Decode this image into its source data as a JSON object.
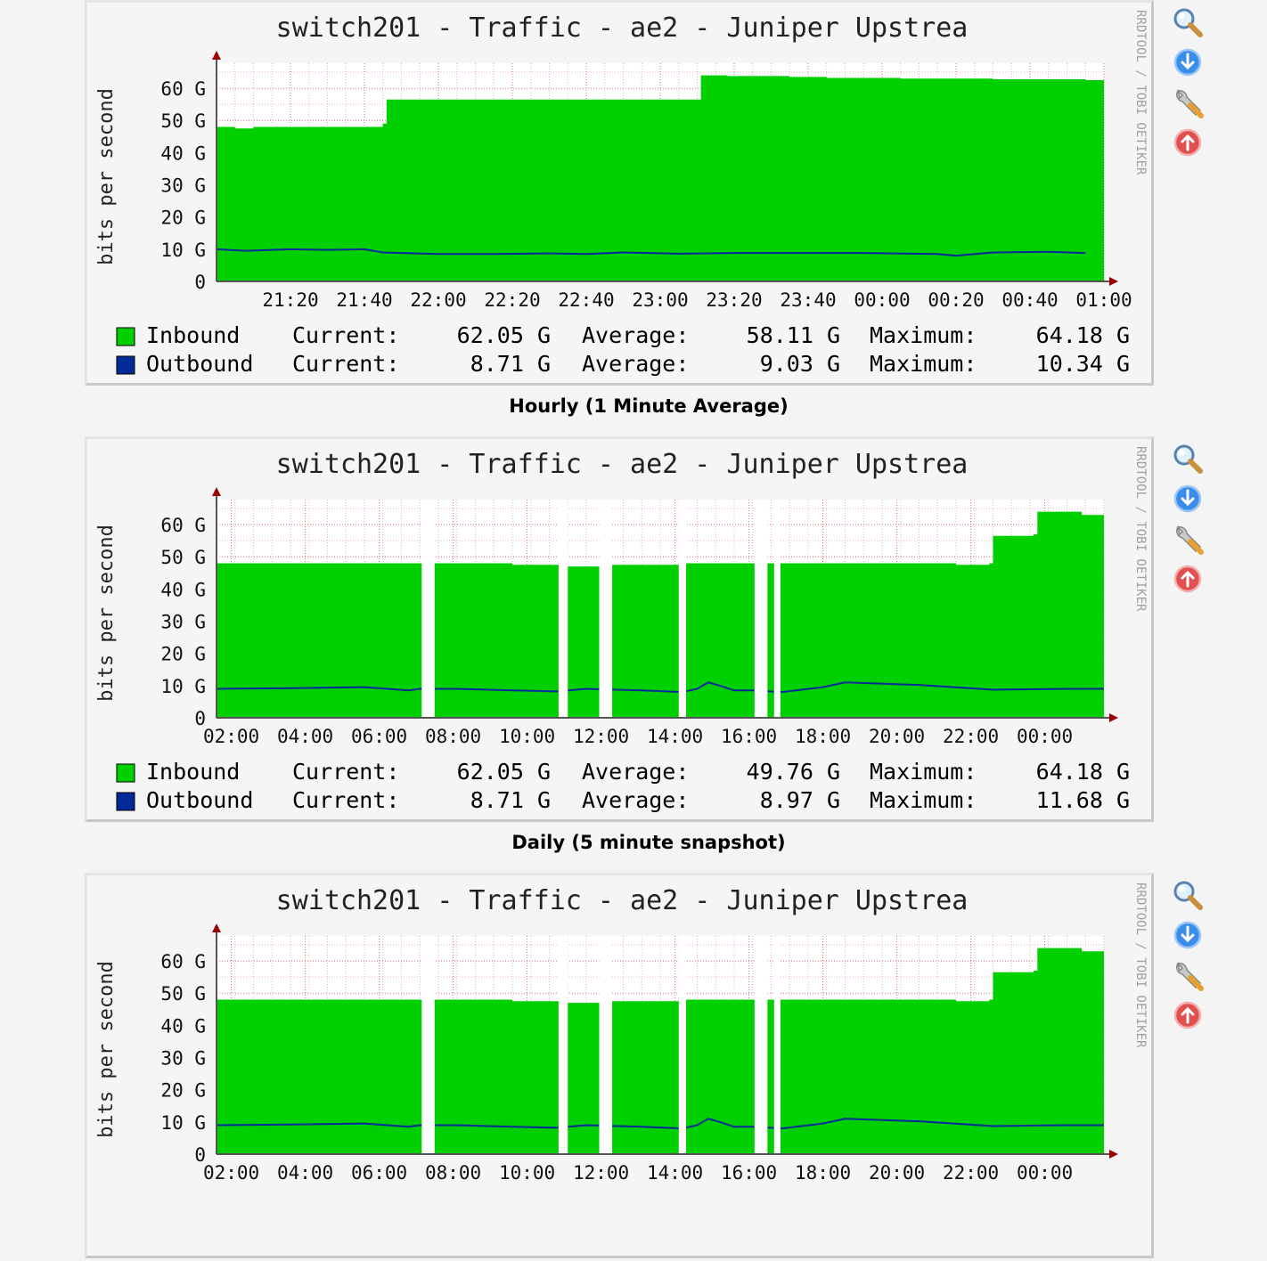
{
  "graphs": [
    {
      "title": "switch201 - Traffic - ae2 - Juniper Upstrea",
      "ylabel": "bits per second",
      "watermark": "RRDTOOL / TOBI OETIKER",
      "caption": "Hourly (1 Minute Average)",
      "icons": [
        "zoom-icon",
        "download-icon",
        "edit-icon",
        "delete-icon"
      ],
      "legend": [
        {
          "name": "Inbound",
          "color": "#00cf00",
          "current_label": "Current:",
          "current": "62.05 G",
          "average_label": "Average:",
          "average": "58.11 G",
          "maximum_label": "Maximum:",
          "maximum": "64.18 G"
        },
        {
          "name": "Outbound",
          "color": "#002a97",
          "current_label": "Current:",
          "current": "8.71 G",
          "average_label": "Average:",
          "average": "9.03 G",
          "maximum_label": "Maximum:",
          "maximum": "10.34 G"
        }
      ]
    },
    {
      "title": "switch201 - Traffic - ae2 - Juniper Upstrea",
      "ylabel": "bits per second",
      "watermark": "RRDTOOL / TOBI OETIKER",
      "caption": "Daily (5 minute snapshot)",
      "icons": [
        "zoom-icon",
        "download-icon",
        "edit-icon",
        "delete-icon"
      ],
      "legend": [
        {
          "name": "Inbound",
          "color": "#00cf00",
          "current_label": "Current:",
          "current": "62.05 G",
          "average_label": "Average:",
          "average": "49.76 G",
          "maximum_label": "Maximum:",
          "maximum": "64.18 G"
        },
        {
          "name": "Outbound",
          "color": "#002a97",
          "current_label": "Current:",
          "current": "8.71 G",
          "average_label": "Average:",
          "average": "8.97 G",
          "maximum_label": "Maximum:",
          "maximum": "11.68 G"
        }
      ]
    },
    {
      "title": "switch201 - Traffic - ae2 - Juniper Upstrea",
      "ylabel": "bits per second",
      "watermark": "RRDTOOL / TOBI OETIKER",
      "caption": "",
      "icons": [
        "zoom-icon",
        "download-icon",
        "edit-icon",
        "delete-icon"
      ],
      "legend": []
    }
  ],
  "chart_data": [
    {
      "type": "area",
      "title": "switch201 - Traffic - ae2 - Juniper Upstrea",
      "ylabel": "bits per second",
      "ylim": [
        0,
        65
      ],
      "yticks": [
        0,
        10,
        20,
        30,
        40,
        50,
        60
      ],
      "ytick_labels": [
        "0",
        "10 G",
        "20 G",
        "30 G",
        "40 G",
        "50 G",
        "60 G"
      ],
      "xticks": [
        "21:20",
        "21:40",
        "22:00",
        "22:20",
        "22:40",
        "23:00",
        "23:20",
        "23:40",
        "00:00",
        "00:20",
        "00:40",
        "01:00"
      ],
      "xlim": [
        0,
        240
      ],
      "xtick_pos": [
        20,
        40,
        60,
        80,
        100,
        120,
        140,
        160,
        180,
        200,
        220,
        240
      ],
      "grid": true,
      "series": [
        {
          "name": "Inbound",
          "kind": "area",
          "color": "#00cf00",
          "x": [
            0,
            5,
            10,
            40,
            45,
            46,
            130,
            131,
            138,
            155,
            165,
            185,
            200,
            210,
            235
          ],
          "y": [
            48,
            47.5,
            48,
            48,
            49,
            56.5,
            56.5,
            64,
            63.8,
            63.5,
            63.2,
            63,
            63,
            62.8,
            62.5
          ],
          "gaps": []
        },
        {
          "name": "Outbound",
          "kind": "line",
          "color": "#002a97",
          "x": [
            0,
            8,
            20,
            30,
            40,
            45,
            60,
            75,
            90,
            100,
            110,
            125,
            140,
            160,
            175,
            195,
            200,
            210,
            225,
            235
          ],
          "y": [
            10,
            9.5,
            10,
            9.8,
            10,
            9,
            8.5,
            8.5,
            8.7,
            8.5,
            9,
            8.6,
            8.8,
            8.8,
            8.8,
            8.5,
            8,
            9,
            9.2,
            8.8
          ],
          "gaps": []
        }
      ]
    },
    {
      "type": "area",
      "title": "switch201 - Traffic - ae2 - Juniper Upstrea",
      "ylabel": "bits per second",
      "ylim": [
        0,
        65
      ],
      "yticks": [
        0,
        10,
        20,
        30,
        40,
        50,
        60
      ],
      "ytick_labels": [
        "0",
        "10 G",
        "20 G",
        "30 G",
        "40 G",
        "50 G",
        "60 G"
      ],
      "xticks": [
        "02:00",
        "04:00",
        "06:00",
        "08:00",
        "10:00",
        "12:00",
        "14:00",
        "16:00",
        "18:00",
        "20:00",
        "22:00",
        "00:00"
      ],
      "xlim": [
        0,
        24
      ],
      "xtick_pos": [
        0.4,
        2.4,
        4.4,
        6.4,
        8.4,
        10.4,
        12.4,
        14.4,
        16.4,
        18.4,
        20.4,
        22.4
      ],
      "grid": true,
      "series": [
        {
          "name": "Inbound",
          "kind": "area",
          "color": "#00cf00",
          "x": [
            0,
            4,
            5.6,
            5.9,
            8,
            9.3,
            9.5,
            10.4,
            10.7,
            12.5,
            12.7,
            14.6,
            15.0,
            15.2,
            15.4,
            18,
            20,
            20.9,
            21.0,
            22.1,
            22.2,
            23.4,
            24
          ],
          "y": [
            48,
            48,
            48,
            48,
            47.5,
            47.5,
            47,
            47,
            47.5,
            47.5,
            48,
            48,
            48,
            48,
            48,
            48,
            47.5,
            48,
            56.5,
            57,
            64,
            63,
            62.5
          ],
          "gaps": [
            [
              5.55,
              5.9
            ],
            [
              9.25,
              9.5
            ],
            [
              10.35,
              10.7
            ],
            [
              12.5,
              12.7
            ],
            [
              14.55,
              14.9
            ],
            [
              15.08,
              15.25
            ]
          ]
        },
        {
          "name": "Outbound",
          "kind": "line",
          "color": "#002a97",
          "x": [
            0,
            2,
            4,
            5.2,
            5.5,
            6.5,
            8,
            9.2,
            10,
            11.5,
            12.6,
            13,
            13.3,
            13.6,
            14,
            14.5,
            15.3,
            16.4,
            17.0,
            19,
            21,
            23,
            24
          ],
          "y": [
            9,
            9.2,
            9.5,
            8.5,
            9,
            9,
            8.5,
            8.2,
            9,
            8.5,
            8,
            9,
            11,
            10,
            8.5,
            8.5,
            8,
            9.5,
            11,
            10.2,
            8.7,
            9,
            9
          ],
          "gaps": [
            [
              5.55,
              5.9
            ],
            [
              9.25,
              9.5
            ],
            [
              10.35,
              10.7
            ],
            [
              12.5,
              12.7
            ],
            [
              14.55,
              14.9
            ],
            [
              15.08,
              15.25
            ]
          ]
        }
      ]
    },
    {
      "type": "area",
      "title": "switch201 - Traffic - ae2 - Juniper Upstrea",
      "ylabel": "bits per second",
      "ylim": [
        0,
        65
      ],
      "yticks": [
        0,
        10,
        20,
        30,
        40,
        50,
        60
      ],
      "ytick_labels": [
        "0",
        "10 G",
        "20 G",
        "30 G",
        "40 G",
        "50 G",
        "60 G"
      ],
      "xticks": [
        "02:00",
        "04:00",
        "06:00",
        "08:00",
        "10:00",
        "12:00",
        "14:00",
        "16:00",
        "18:00",
        "20:00",
        "22:00",
        "00:00"
      ],
      "xlim": [
        0,
        24
      ],
      "xtick_pos": [
        0.4,
        2.4,
        4.4,
        6.4,
        8.4,
        10.4,
        12.4,
        14.4,
        16.4,
        18.4,
        20.4,
        22.4
      ],
      "grid": true,
      "series": [
        {
          "name": "Inbound",
          "kind": "area",
          "color": "#00cf00",
          "x": [
            0,
            4,
            5.6,
            5.9,
            8,
            9.3,
            9.5,
            10.4,
            10.7,
            12.5,
            12.7,
            14.6,
            15.0,
            15.2,
            15.4,
            18,
            20,
            20.9,
            21.0,
            22.1,
            22.2,
            23.4,
            24
          ],
          "y": [
            48,
            48,
            48,
            48,
            47.5,
            47.5,
            47,
            47,
            47.5,
            47.5,
            48,
            48,
            48,
            48,
            48,
            48,
            47.5,
            48,
            56.5,
            57,
            64,
            63,
            62.5
          ],
          "gaps": [
            [
              5.55,
              5.9
            ],
            [
              9.25,
              9.5
            ],
            [
              10.35,
              10.7
            ],
            [
              12.5,
              12.7
            ],
            [
              14.55,
              14.9
            ],
            [
              15.08,
              15.25
            ]
          ]
        },
        {
          "name": "Outbound",
          "kind": "line",
          "color": "#002a97",
          "x": [
            0,
            2,
            4,
            5.2,
            5.5,
            6.5,
            8,
            9.2,
            10,
            11.5,
            12.6,
            13,
            13.3,
            13.6,
            14,
            14.5,
            15.3,
            16.4,
            17.0,
            19,
            21,
            23,
            24
          ],
          "y": [
            9,
            9.2,
            9.5,
            8.5,
            9,
            9,
            8.5,
            8.2,
            9,
            8.5,
            8,
            9,
            11,
            10,
            8.5,
            8.5,
            8,
            9.5,
            11,
            10.2,
            8.7,
            9,
            9
          ],
          "gaps": [
            [
              5.55,
              5.9
            ],
            [
              9.25,
              9.5
            ],
            [
              10.35,
              10.7
            ],
            [
              12.5,
              12.7
            ],
            [
              14.55,
              14.9
            ],
            [
              15.08,
              15.25
            ]
          ]
        }
      ]
    }
  ]
}
